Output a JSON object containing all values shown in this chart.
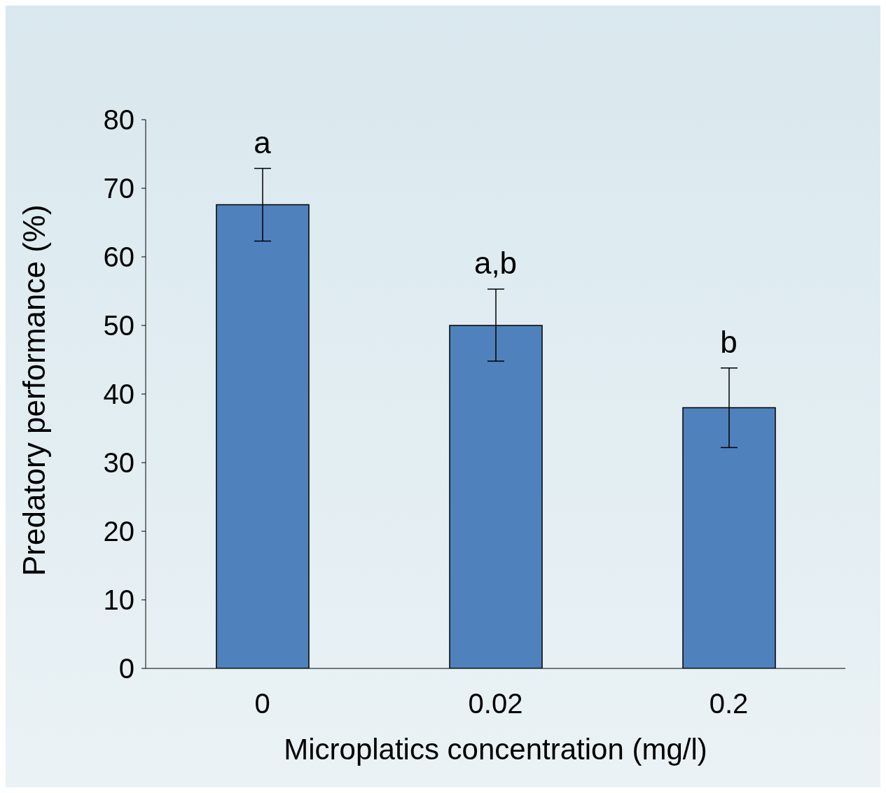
{
  "chart_data": {
    "type": "bar",
    "xlabel": "Microplatics concentration (mg/l)",
    "ylabel": "Predatory performance (%)",
    "categories": [
      "0",
      "0.02",
      "0.2"
    ],
    "values": [
      67.6,
      50,
      38
    ],
    "errors": [
      [
        62.3,
        72.9
      ],
      [
        44.8,
        55.3
      ],
      [
        32.2,
        43.8
      ]
    ],
    "color": "#4f81bd",
    "ylim": [
      0,
      80
    ],
    "yticks": [
      0,
      10,
      20,
      30,
      40,
      50,
      60,
      70,
      80
    ],
    "grid": false,
    "legend": false,
    "annotations": [
      "a",
      "a,b",
      "b"
    ]
  }
}
